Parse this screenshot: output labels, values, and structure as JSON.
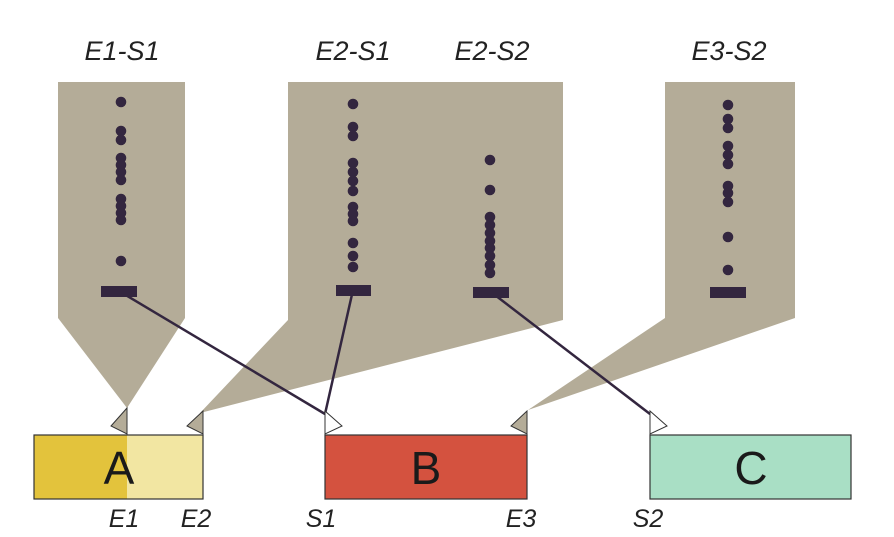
{
  "colors": {
    "background": "#ffffff",
    "funnel": "#b4ac98",
    "dot": "#33263f",
    "box_a": "#e3c33c",
    "box_a_ext": "#f2e6a2",
    "box_b": "#d4523f",
    "box_c": "#a9dfc5",
    "outline": "#333333"
  },
  "boxes": [
    {
      "id": "a",
      "label": "A"
    },
    {
      "id": "b",
      "label": "B"
    },
    {
      "id": "c",
      "label": "C"
    }
  ],
  "pair_labels": [
    "E1-S1",
    "E2-S1",
    "E2-S2",
    "E3-S2"
  ],
  "event_labels": [
    "E1",
    "E2",
    "S1",
    "E3",
    "S2"
  ]
}
